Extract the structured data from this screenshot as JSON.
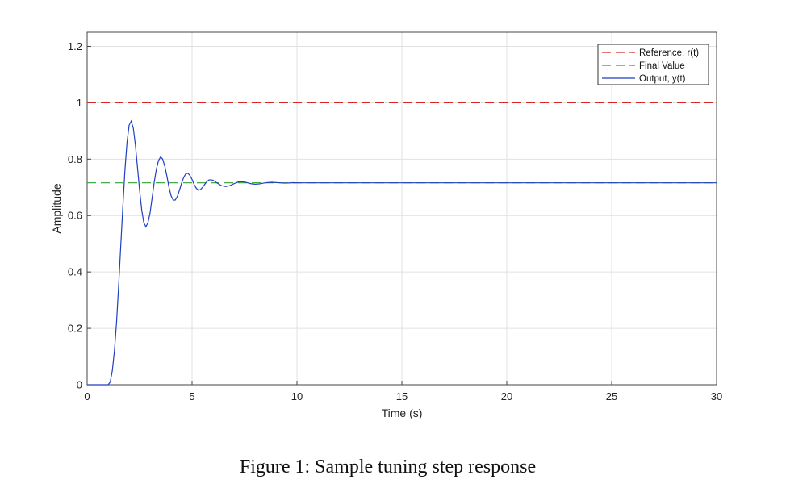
{
  "caption": "Figure 1: Sample tuning step response",
  "chart_data": {
    "type": "line",
    "xlabel": "Time (s)",
    "ylabel": "Amplitude",
    "xlim": [
      0,
      30
    ],
    "ylim": [
      0,
      1.25
    ],
    "xticks": [
      0,
      5,
      10,
      15,
      20,
      25,
      30
    ],
    "yticks": [
      0,
      0.2,
      0.4,
      0.6,
      0.8,
      1,
      1.2
    ],
    "ytick_labels": [
      "0",
      "0.2",
      "0.4",
      "0.6",
      "0.8",
      "1",
      "1.2"
    ],
    "grid": true,
    "legend_position": "top-right",
    "series": [
      {
        "name": "Reference, r(t)",
        "style": "dashed",
        "color": "#d62728",
        "x": [
          0,
          30
        ],
        "y": [
          1,
          1
        ]
      },
      {
        "name": "Final Value",
        "style": "dashed",
        "color": "#2ca02c",
        "x": [
          0,
          30
        ],
        "y": [
          0.716,
          0.716
        ]
      },
      {
        "name": "Output, y(t)",
        "style": "solid",
        "color": "#1f3fbf",
        "x": [
          0,
          0.5,
          1.0,
          1.1,
          1.2,
          1.3,
          1.4,
          1.5,
          1.6,
          1.7,
          1.8,
          1.9,
          2.0,
          2.1,
          2.2,
          2.3,
          2.4,
          2.5,
          2.6,
          2.7,
          2.8,
          2.9,
          3.0,
          3.1,
          3.2,
          3.3,
          3.4,
          3.5,
          3.6,
          3.7,
          3.8,
          3.9,
          4.0,
          4.1,
          4.2,
          4.3,
          4.4,
          4.5,
          4.6,
          4.7,
          4.8,
          4.9,
          5.0,
          5.1,
          5.2,
          5.3,
          5.4,
          5.5,
          5.6,
          5.7,
          5.8,
          5.9,
          6.0,
          6.2,
          6.4,
          6.6,
          6.8,
          7.0,
          7.2,
          7.4,
          7.6,
          7.8,
          8.0,
          8.2,
          8.4,
          8.6,
          8.8,
          9.0,
          9.2,
          9.4,
          9.6,
          9.8,
          10.0,
          10.5,
          11.0,
          11.5,
          12.0,
          13.0,
          14.0,
          16.0,
          20.0,
          25.0,
          30.0
        ],
        "y": [
          0,
          0,
          0,
          0.01,
          0.05,
          0.12,
          0.22,
          0.35,
          0.49,
          0.63,
          0.76,
          0.86,
          0.92,
          0.935,
          0.91,
          0.85,
          0.77,
          0.69,
          0.62,
          0.575,
          0.56,
          0.575,
          0.61,
          0.665,
          0.72,
          0.765,
          0.795,
          0.808,
          0.8,
          0.775,
          0.74,
          0.7,
          0.67,
          0.655,
          0.655,
          0.668,
          0.69,
          0.715,
          0.735,
          0.748,
          0.75,
          0.742,
          0.728,
          0.71,
          0.697,
          0.69,
          0.692,
          0.7,
          0.71,
          0.72,
          0.726,
          0.727,
          0.725,
          0.715,
          0.706,
          0.703,
          0.706,
          0.713,
          0.719,
          0.72,
          0.717,
          0.713,
          0.711,
          0.712,
          0.715,
          0.717,
          0.718,
          0.717,
          0.716,
          0.715,
          0.7155,
          0.7165,
          0.716,
          0.716,
          0.716,
          0.716,
          0.716,
          0.716,
          0.716,
          0.716,
          0.716,
          0.716,
          0.716
        ]
      }
    ]
  }
}
